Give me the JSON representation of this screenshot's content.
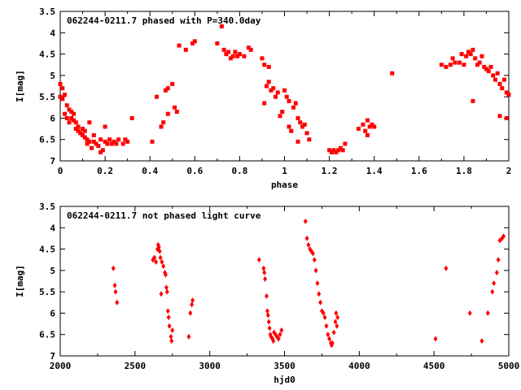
{
  "chart_data": [
    {
      "type": "scatter",
      "title": "062244-0211.7 phased with P=340.0day",
      "xlabel": "phase",
      "ylabel": "I[mag]",
      "xlim": [
        0,
        2
      ],
      "ylim": [
        3.5,
        7
      ],
      "y_inverted": true,
      "grid": false,
      "x_ticks": [
        "0",
        "0.2",
        "0.4",
        "0.6",
        "0.8",
        "1",
        "1.2",
        "1.4",
        "1.6",
        "1.8",
        "2"
      ],
      "y_ticks": [
        "3.5",
        "4",
        "4.5",
        "5",
        "5.5",
        "6",
        "6.5",
        "7"
      ],
      "marker_color": "#ff0000",
      "series": [
        {
          "points": [
            [
              0.0,
              5.2
            ],
            [
              0.0,
              5.5
            ],
            [
              0.01,
              5.3
            ],
            [
              0.01,
              5.55
            ],
            [
              0.02,
              5.45
            ],
            [
              0.02,
              5.9
            ],
            [
              0.03,
              5.7
            ],
            [
              0.03,
              6.0
            ],
            [
              0.04,
              5.8
            ],
            [
              0.04,
              6.1
            ],
            [
              0.05,
              5.85
            ],
            [
              0.05,
              6.0
            ],
            [
              0.06,
              5.9
            ],
            [
              0.06,
              6.05
            ],
            [
              0.07,
              6.1
            ],
            [
              0.07,
              6.25
            ],
            [
              0.08,
              6.2
            ],
            [
              0.08,
              6.3
            ],
            [
              0.09,
              6.35
            ],
            [
              0.1,
              6.4
            ],
            [
              0.1,
              6.25
            ],
            [
              0.11,
              6.45
            ],
            [
              0.11,
              6.3
            ],
            [
              0.12,
              6.5
            ],
            [
              0.12,
              6.6
            ],
            [
              0.13,
              6.1
            ],
            [
              0.13,
              6.55
            ],
            [
              0.14,
              6.7
            ],
            [
              0.15,
              6.55
            ],
            [
              0.15,
              6.4
            ],
            [
              0.16,
              6.6
            ],
            [
              0.17,
              6.65
            ],
            [
              0.18,
              6.8
            ],
            [
              0.18,
              6.5
            ],
            [
              0.19,
              6.75
            ],
            [
              0.2,
              6.55
            ],
            [
              0.2,
              6.2
            ],
            [
              0.21,
              6.6
            ],
            [
              0.22,
              6.5
            ],
            [
              0.23,
              6.6
            ],
            [
              0.24,
              6.55
            ],
            [
              0.25,
              6.6
            ],
            [
              0.26,
              6.5
            ],
            [
              0.28,
              6.6
            ],
            [
              0.29,
              6.5
            ],
            [
              0.3,
              6.55
            ],
            [
              0.32,
              6.0
            ],
            [
              0.41,
              6.55
            ],
            [
              0.43,
              5.5
            ],
            [
              0.45,
              6.2
            ],
            [
              0.46,
              6.1
            ],
            [
              0.47,
              5.35
            ],
            [
              0.48,
              5.3
            ],
            [
              0.48,
              5.9
            ],
            [
              0.5,
              5.2
            ],
            [
              0.51,
              5.75
            ],
            [
              0.52,
              5.85
            ],
            [
              0.53,
              4.3
            ],
            [
              0.56,
              4.4
            ],
            [
              0.59,
              4.25
            ],
            [
              0.6,
              4.2
            ],
            [
              0.7,
              4.25
            ],
            [
              0.72,
              3.85
            ],
            [
              0.73,
              4.4
            ],
            [
              0.74,
              4.5
            ],
            [
              0.75,
              4.45
            ],
            [
              0.76,
              4.6
            ],
            [
              0.77,
              4.55
            ],
            [
              0.78,
              4.45
            ],
            [
              0.79,
              4.55
            ],
            [
              0.8,
              4.5
            ],
            [
              0.82,
              4.55
            ],
            [
              0.84,
              4.35
            ],
            [
              0.85,
              4.4
            ],
            [
              0.9,
              4.6
            ],
            [
              0.91,
              4.75
            ],
            [
              0.91,
              5.65
            ],
            [
              0.92,
              5.25
            ],
            [
              0.93,
              5.15
            ],
            [
              0.93,
              4.8
            ],
            [
              0.94,
              5.35
            ],
            [
              0.95,
              5.3
            ],
            [
              0.96,
              5.5
            ],
            [
              0.97,
              5.4
            ],
            [
              0.98,
              5.95
            ],
            [
              0.99,
              5.85
            ],
            [
              1.0,
              5.35
            ],
            [
              1.01,
              5.5
            ],
            [
              1.02,
              5.6
            ],
            [
              1.02,
              6.2
            ],
            [
              1.03,
              6.3
            ],
            [
              1.04,
              5.75
            ],
            [
              1.05,
              5.65
            ],
            [
              1.06,
              6.0
            ],
            [
              1.06,
              6.55
            ],
            [
              1.07,
              6.1
            ],
            [
              1.08,
              6.2
            ],
            [
              1.09,
              6.15
            ],
            [
              1.1,
              6.35
            ],
            [
              1.11,
              6.5
            ],
            [
              1.2,
              6.75
            ],
            [
              1.21,
              6.8
            ],
            [
              1.22,
              6.75
            ],
            [
              1.23,
              6.8
            ],
            [
              1.24,
              6.75
            ],
            [
              1.25,
              6.7
            ],
            [
              1.26,
              6.75
            ],
            [
              1.27,
              6.6
            ],
            [
              1.33,
              6.25
            ],
            [
              1.35,
              6.15
            ],
            [
              1.36,
              6.3
            ],
            [
              1.37,
              6.4
            ],
            [
              1.37,
              6.05
            ],
            [
              1.38,
              6.2
            ],
            [
              1.39,
              6.15
            ],
            [
              1.4,
              6.2
            ],
            [
              1.48,
              4.95
            ],
            [
              1.7,
              4.75
            ],
            [
              1.72,
              4.8
            ],
            [
              1.74,
              4.75
            ],
            [
              1.75,
              4.6
            ],
            [
              1.76,
              4.7
            ],
            [
              1.78,
              4.7
            ],
            [
              1.79,
              4.5
            ],
            [
              1.8,
              4.75
            ],
            [
              1.81,
              4.55
            ],
            [
              1.82,
              4.45
            ],
            [
              1.83,
              4.5
            ],
            [
              1.84,
              4.4
            ],
            [
              1.85,
              4.6
            ],
            [
              1.86,
              4.75
            ],
            [
              1.87,
              4.7
            ],
            [
              1.88,
              4.55
            ],
            [
              1.89,
              4.8
            ],
            [
              1.9,
              4.85
            ],
            [
              1.91,
              4.9
            ],
            [
              1.92,
              4.8
            ],
            [
              1.93,
              5.0
            ],
            [
              1.94,
              5.1
            ],
            [
              1.95,
              4.95
            ],
            [
              1.96,
              5.2
            ],
            [
              1.97,
              5.3
            ],
            [
              1.98,
              5.1
            ],
            [
              1.99,
              5.4
            ],
            [
              2.0,
              5.45
            ],
            [
              1.84,
              5.6
            ],
            [
              1.96,
              5.95
            ],
            [
              1.99,
              6.0
            ]
          ]
        }
      ]
    },
    {
      "type": "scatter",
      "title": "062244-0211.7 not phased light curve",
      "xlabel": "hjd0",
      "ylabel": "I[mag]",
      "xlim": [
        2000,
        5000
      ],
      "ylim": [
        3.5,
        7
      ],
      "y_inverted": true,
      "grid": false,
      "x_ticks": [
        "2000",
        "2500",
        "3000",
        "3500",
        "4000",
        "4500",
        "5000"
      ],
      "y_ticks": [
        "3.5",
        "4",
        "4.5",
        "5",
        "5.5",
        "6",
        "6.5",
        "7"
      ],
      "marker_color": "#ff0000",
      "series": [
        {
          "points": [
            [
              2355,
              4.95
            ],
            [
              2365,
              5.35
            ],
            [
              2370,
              5.5
            ],
            [
              2380,
              5.75
            ],
            [
              2620,
              4.75
            ],
            [
              2630,
              4.7
            ],
            [
              2640,
              4.8
            ],
            [
              2650,
              4.5
            ],
            [
              2655,
              4.4
            ],
            [
              2660,
              4.45
            ],
            [
              2665,
              4.55
            ],
            [
              2670,
              4.7
            ],
            [
              2675,
              5.55
            ],
            [
              2680,
              4.8
            ],
            [
              2690,
              4.9
            ],
            [
              2700,
              5.05
            ],
            [
              2705,
              5.1
            ],
            [
              2710,
              5.4
            ],
            [
              2715,
              5.5
            ],
            [
              2720,
              5.95
            ],
            [
              2725,
              6.1
            ],
            [
              2730,
              6.3
            ],
            [
              2740,
              6.55
            ],
            [
              2745,
              6.65
            ],
            [
              2750,
              6.4
            ],
            [
              2860,
              6.55
            ],
            [
              2870,
              6.0
            ],
            [
              2880,
              5.8
            ],
            [
              2885,
              5.7
            ],
            [
              3330,
              4.75
            ],
            [
              3360,
              4.95
            ],
            [
              3365,
              5.05
            ],
            [
              3370,
              5.2
            ],
            [
              3380,
              5.6
            ],
            [
              3385,
              5.95
            ],
            [
              3390,
              6.05
            ],
            [
              3395,
              6.2
            ],
            [
              3400,
              6.35
            ],
            [
              3405,
              6.5
            ],
            [
              3410,
              6.55
            ],
            [
              3420,
              6.6
            ],
            [
              3425,
              6.65
            ],
            [
              3430,
              6.45
            ],
            [
              3440,
              6.5
            ],
            [
              3450,
              6.55
            ],
            [
              3460,
              6.6
            ],
            [
              3470,
              6.5
            ],
            [
              3480,
              6.4
            ],
            [
              3640,
              3.85
            ],
            [
              3650,
              4.25
            ],
            [
              3660,
              4.4
            ],
            [
              3670,
              4.5
            ],
            [
              3680,
              4.55
            ],
            [
              3690,
              4.6
            ],
            [
              3700,
              4.75
            ],
            [
              3710,
              5.0
            ],
            [
              3720,
              5.3
            ],
            [
              3730,
              5.55
            ],
            [
              3740,
              5.75
            ],
            [
              3750,
              5.95
            ],
            [
              3760,
              6.0
            ],
            [
              3770,
              6.1
            ],
            [
              3780,
              6.3
            ],
            [
              3790,
              6.5
            ],
            [
              3800,
              6.6
            ],
            [
              3810,
              6.7
            ],
            [
              3815,
              6.75
            ],
            [
              3820,
              6.7
            ],
            [
              3830,
              6.45
            ],
            [
              3840,
              6.2
            ],
            [
              3845,
              6.0
            ],
            [
              3850,
              6.3
            ],
            [
              3855,
              6.1
            ],
            [
              4510,
              6.6
            ],
            [
              4580,
              4.95
            ],
            [
              4740,
              6.0
            ],
            [
              4820,
              6.65
            ],
            [
              4860,
              6.0
            ],
            [
              4890,
              5.5
            ],
            [
              4900,
              5.3
            ],
            [
              4920,
              5.05
            ],
            [
              4930,
              4.75
            ],
            [
              4940,
              4.3
            ],
            [
              4955,
              4.25
            ],
            [
              4965,
              4.2
            ]
          ]
        }
      ]
    }
  ]
}
